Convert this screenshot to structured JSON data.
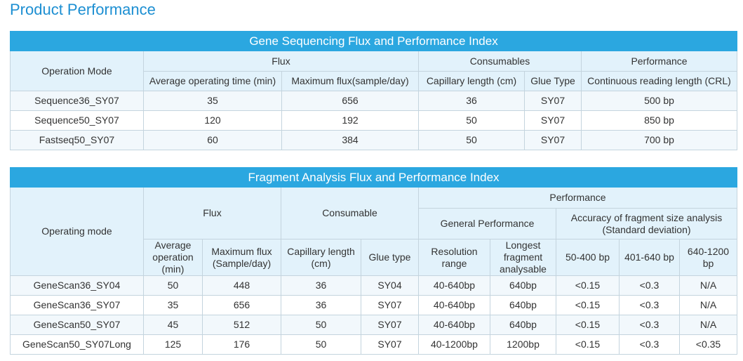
{
  "header": {
    "title": "Product Performance"
  },
  "table1": {
    "title": "Gene Sequencing Flux and Performance Index",
    "header_rows": [
      [
        "Operation Mode",
        "Flux",
        "Consumables",
        "Performance"
      ],
      [
        "Average operating time (min)",
        "Maximum flux(sample/day)",
        "Capillary length (cm)",
        "Glue Type",
        "Continuous reading length (CRL)"
      ]
    ],
    "rows": [
      [
        "Sequence36_SY07",
        35,
        656,
        36,
        "SY07",
        "500 bp"
      ],
      [
        "Sequence50_SY07",
        120,
        192,
        50,
        "SY07",
        "850 bp"
      ],
      [
        "Fastseq50_SY07",
        60,
        384,
        50,
        "SY07",
        "700 bp"
      ]
    ]
  },
  "table2": {
    "title": "Fragment Analysis Flux and Performance Index",
    "header_rows": [
      [
        "Operating mode",
        "Flux",
        "Consumable",
        "Performance"
      ],
      [
        "General Performance",
        "Accuracy of fragment size analysis (Standard deviation)"
      ],
      [
        "Average operation (min)",
        "Maximum flux (Sample/day)",
        "Capillary length (cm)",
        "Glue type",
        "Resolution range",
        "Longest fragment analysable",
        "50-400 bp",
        "401-640 bp",
        "640-1200 bp"
      ]
    ],
    "rows": [
      [
        "GeneScan36_SY04",
        50,
        448,
        36,
        "SY04",
        "40-640bp",
        "640bp",
        "<0.15",
        "<0.3",
        "N/A"
      ],
      [
        "GeneScan36_SY07",
        35,
        656,
        36,
        "SY07",
        "40-640bp",
        "640bp",
        "<0.15",
        "<0.3",
        "N/A"
      ],
      [
        "GeneScan50_SY07",
        45,
        512,
        50,
        "SY07",
        "40-640bp",
        "640bp",
        "<0.15",
        "<0.3",
        "N/A"
      ],
      [
        "GeneScan50_SY07Long",
        125,
        176,
        50,
        "SY07",
        "40-1200bp",
        "1200bp",
        "<0.15",
        "<0.3",
        "<0.35"
      ]
    ]
  }
}
